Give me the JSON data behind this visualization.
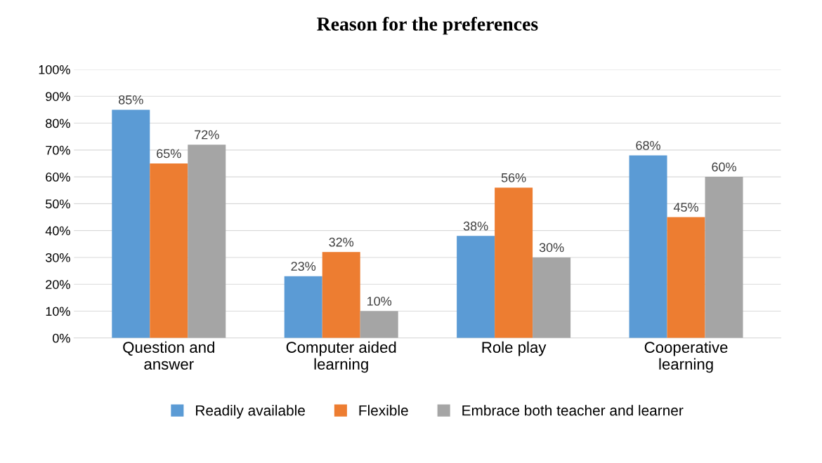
{
  "chart_data": {
    "type": "bar",
    "title": "Reason for the preferences",
    "categories": [
      "Question and\nanswer",
      "Computer aided\nlearning",
      "Role play",
      "Cooperative\nlearning"
    ],
    "series": [
      {
        "name": "Readily available",
        "color": "#5b9bd5",
        "values": [
          85,
          23,
          38,
          68
        ],
        "value_labels": [
          "85%",
          "23%",
          "38%",
          "68%"
        ]
      },
      {
        "name": "Flexible",
        "color": "#ed7d31",
        "values": [
          65,
          32,
          56,
          45
        ],
        "value_labels": [
          "65%",
          "32%",
          "56%",
          "45%"
        ]
      },
      {
        "name": "Embrace both teacher and learner",
        "color": "#a5a5a5",
        "values": [
          72,
          10,
          30,
          60
        ],
        "value_labels": [
          "72%",
          "10%",
          "30%",
          "60%"
        ]
      }
    ],
    "ylim": [
      0,
      100
    ],
    "yticks": [
      {
        "value": 0,
        "label": "0%"
      },
      {
        "value": 10,
        "label": "10%"
      },
      {
        "value": 20,
        "label": "20%"
      },
      {
        "value": 30,
        "label": "30%"
      },
      {
        "value": 40,
        "label": "40%"
      },
      {
        "value": 50,
        "label": "50%"
      },
      {
        "value": 60,
        "label": "60%"
      },
      {
        "value": 70,
        "label": "70%"
      },
      {
        "value": 80,
        "label": "80%"
      },
      {
        "value": 90,
        "label": "90%"
      },
      {
        "value": 100,
        "label": "100%"
      }
    ],
    "grid": "y",
    "legend": "bottom"
  }
}
